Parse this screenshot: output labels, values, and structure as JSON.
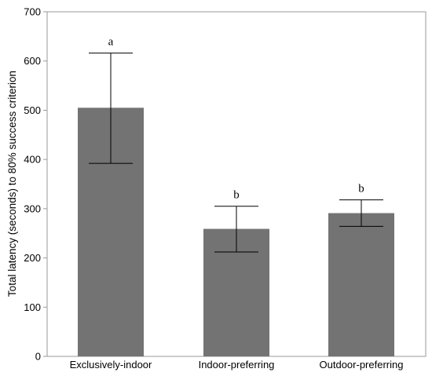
{
  "chart_data": {
    "type": "bar",
    "categories": [
      "Exclusively-indoor",
      "Indoor-preferring",
      "Outdoor-preferring"
    ],
    "values": [
      505,
      259,
      291
    ],
    "error_low": [
      392,
      212,
      264
    ],
    "error_high": [
      616,
      305,
      318
    ],
    "significance_labels": [
      "a",
      "b",
      "b"
    ],
    "title": "",
    "xlabel": "",
    "ylabel": "Total latency (seconds) to 80% success criterion",
    "ylim": [
      0,
      700
    ],
    "yticks": [
      0,
      100,
      200,
      300,
      400,
      500,
      600,
      700
    ],
    "grid": false,
    "bar_color": "#737373"
  }
}
